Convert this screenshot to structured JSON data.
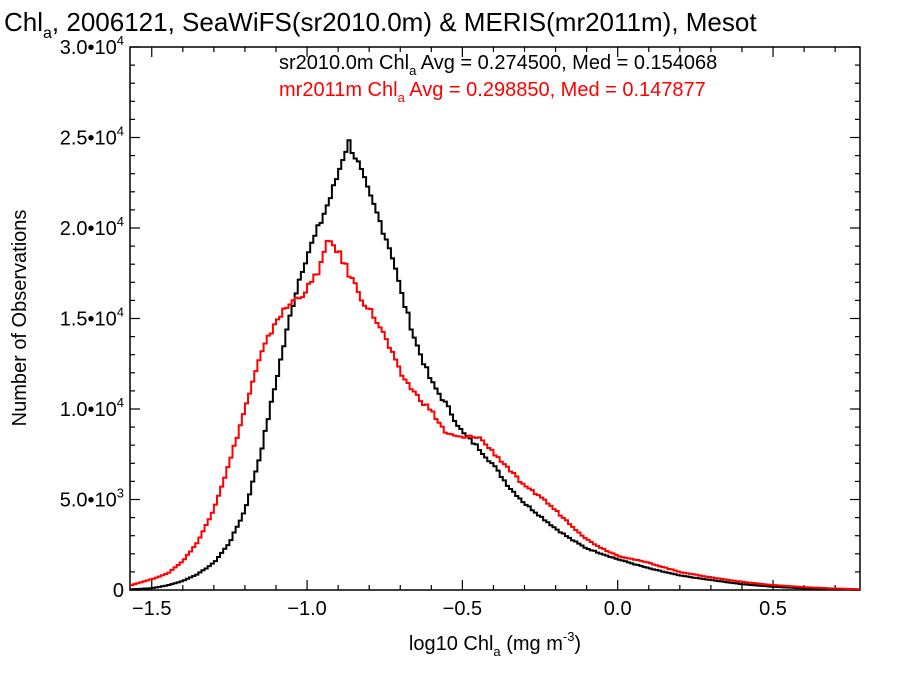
{
  "chart_data": {
    "type": "line",
    "title": {
      "lead": "Chl",
      "lead_sub": "a",
      "rest": ", 2006121, SeaWiFS(sr2010.0m) & MERIS(mr2011m), Mesot"
    },
    "xlabel": {
      "lead": "log10 Chl",
      "lead_sub": "a",
      "mid": " (mg m",
      "sup": "-3",
      "tail": ")"
    },
    "ylabel": "Number of Observations",
    "xlim": [
      -1.57,
      0.78
    ],
    "ylim": [
      0,
      30000
    ],
    "x_ticks": [
      {
        "value": -1.5,
        "label": "−1.5"
      },
      {
        "value": -1.0,
        "label": "−1.0"
      },
      {
        "value": -0.5,
        "label": "−0.5"
      },
      {
        "value": 0.0,
        "label": "0.0"
      },
      {
        "value": 0.5,
        "label": "0.5"
      }
    ],
    "y_ticks": [
      {
        "value": 0,
        "mant": "0",
        "exp": ""
      },
      {
        "value": 5000,
        "mant": "5.0•10",
        "exp": "3"
      },
      {
        "value": 10000,
        "mant": "1.0•10",
        "exp": "4"
      },
      {
        "value": 15000,
        "mant": "1.5•10",
        "exp": "4"
      },
      {
        "value": 20000,
        "mant": "2.0•10",
        "exp": "4"
      },
      {
        "value": 25000,
        "mant": "2.5•10",
        "exp": "4"
      },
      {
        "value": 30000,
        "mant": "3.0•10",
        "exp": "4"
      }
    ],
    "legend": [
      {
        "color": "#000000",
        "lead": "sr2010.0m Chl",
        "sub": "a",
        "stats": " Avg = 0.274500, Med = 0.154068"
      },
      {
        "color": "#ff0000",
        "lead": "mr2011m Chl",
        "sub": "a",
        "stats": " Avg = 0.298850, Med = 0.147877"
      }
    ],
    "series": [
      {
        "color": "#000000",
        "x": [
          -1.57,
          -1.5,
          -1.45,
          -1.4,
          -1.35,
          -1.3,
          -1.25,
          -1.2,
          -1.15,
          -1.1,
          -1.05,
          -1.02,
          -1.0,
          -0.97,
          -0.95,
          -0.92,
          -0.9,
          -0.88,
          -0.865,
          -0.85,
          -0.83,
          -0.8,
          -0.78,
          -0.75,
          -0.72,
          -0.7,
          -0.65,
          -0.6,
          -0.55,
          -0.5,
          -0.45,
          -0.4,
          -0.35,
          -0.3,
          -0.25,
          -0.2,
          -0.15,
          -0.1,
          -0.05,
          0.0,
          0.1,
          0.2,
          0.3,
          0.4,
          0.5,
          0.6,
          0.7,
          0.78
        ],
        "y": [
          30,
          100,
          250,
          500,
          900,
          1500,
          2600,
          4400,
          7500,
          11500,
          15500,
          17500,
          18500,
          19700,
          20600,
          21900,
          23000,
          24200,
          24700,
          24200,
          23300,
          21800,
          21000,
          19700,
          18200,
          16600,
          13700,
          11500,
          10200,
          8700,
          7900,
          6900,
          5700,
          4800,
          4100,
          3400,
          2800,
          2300,
          2000,
          1700,
          1200,
          800,
          550,
          320,
          180,
          90,
          40,
          20
        ]
      },
      {
        "color": "#ff0000",
        "x": [
          -1.57,
          -1.5,
          -1.45,
          -1.4,
          -1.35,
          -1.3,
          -1.25,
          -1.2,
          -1.15,
          -1.1,
          -1.05,
          -1.02,
          -1.0,
          -0.97,
          -0.95,
          -0.93,
          -0.91,
          -0.88,
          -0.85,
          -0.82,
          -0.8,
          -0.78,
          -0.75,
          -0.7,
          -0.65,
          -0.6,
          -0.55,
          -0.5,
          -0.45,
          -0.4,
          -0.35,
          -0.3,
          -0.25,
          -0.2,
          -0.15,
          -0.1,
          -0.05,
          0.0,
          0.1,
          0.2,
          0.3,
          0.4,
          0.5,
          0.6,
          0.7,
          0.78
        ],
        "y": [
          250,
          600,
          900,
          1600,
          2700,
          4500,
          7000,
          10000,
          12900,
          14900,
          15900,
          16300,
          16600,
          17400,
          18300,
          19300,
          19000,
          18000,
          17000,
          16000,
          15500,
          15000,
          14000,
          12000,
          10800,
          9900,
          8600,
          8400,
          8500,
          7600,
          6700,
          5700,
          5200,
          4400,
          3600,
          2800,
          2300,
          1900,
          1500,
          1000,
          700,
          450,
          270,
          160,
          80,
          40
        ]
      }
    ]
  }
}
